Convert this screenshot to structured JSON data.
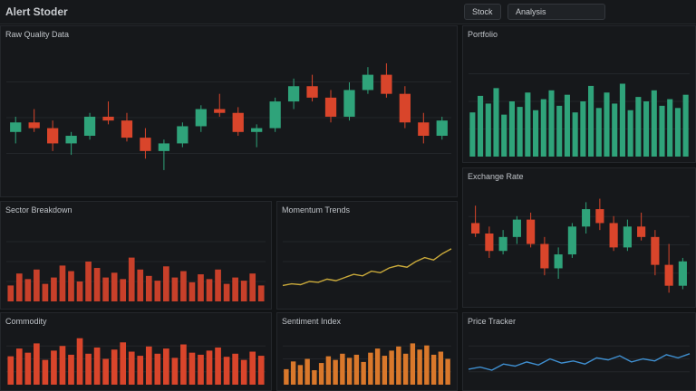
{
  "header": {
    "title": "Alert Stoder",
    "buttons": [
      "Stock",
      "Analysis"
    ]
  },
  "chart_data": [
    {
      "type": "candlestick",
      "title": "Raw Quality Data",
      "ylim": [
        20,
        95
      ],
      "up_color": "#2fa37a",
      "down_color": "#d9452b",
      "candles": [
        [
          50,
          58,
          44,
          55
        ],
        [
          55,
          62,
          50,
          52
        ],
        [
          52,
          56,
          40,
          44
        ],
        [
          44,
          50,
          38,
          48
        ],
        [
          48,
          60,
          46,
          58
        ],
        [
          58,
          66,
          54,
          56
        ],
        [
          56,
          60,
          45,
          47
        ],
        [
          47,
          52,
          36,
          40
        ],
        [
          40,
          46,
          30,
          44
        ],
        [
          44,
          55,
          42,
          53
        ],
        [
          53,
          64,
          50,
          62
        ],
        [
          62,
          70,
          58,
          60
        ],
        [
          60,
          63,
          48,
          50
        ],
        [
          50,
          54,
          42,
          52
        ],
        [
          52,
          68,
          50,
          66
        ],
        [
          66,
          78,
          62,
          74
        ],
        [
          74,
          80,
          66,
          68
        ],
        [
          68,
          72,
          55,
          58
        ],
        [
          58,
          76,
          56,
          72
        ],
        [
          72,
          84,
          70,
          80
        ],
        [
          80,
          86,
          68,
          70
        ],
        [
          70,
          74,
          52,
          55
        ],
        [
          55,
          60,
          44,
          48
        ],
        [
          48,
          58,
          46,
          56
        ]
      ]
    },
    {
      "type": "bar",
      "title": "Sector Breakdown",
      "ylim": [
        0,
        100
      ],
      "color": "#c8402a",
      "values": [
        20,
        35,
        28,
        40,
        22,
        30,
        45,
        38,
        25,
        50,
        42,
        30,
        36,
        28,
        55,
        40,
        32,
        26,
        44,
        30,
        38,
        24,
        34,
        28,
        40,
        22,
        30,
        26,
        35,
        20
      ]
    },
    {
      "type": "bar",
      "title": "Commodity",
      "ylim": [
        0,
        100
      ],
      "color": "#d9452b",
      "values": [
        55,
        70,
        62,
        80,
        48,
        66,
        75,
        58,
        90,
        60,
        72,
        50,
        68,
        82,
        64,
        56,
        74,
        60,
        70,
        52,
        78,
        62,
        58,
        66,
        72,
        54,
        60,
        48,
        64,
        56
      ]
    },
    {
      "type": "line",
      "title": "Momentum Trends",
      "ylim": [
        0,
        100
      ],
      "color": "#c9a93a",
      "values": [
        20,
        22,
        21,
        25,
        24,
        28,
        26,
        30,
        34,
        32,
        38,
        36,
        42,
        45,
        43,
        50,
        55,
        52,
        60,
        66
      ]
    },
    {
      "type": "bar",
      "title": "Sentiment Index",
      "ylim": [
        0,
        100
      ],
      "color": "#d9782b",
      "values": [
        30,
        45,
        38,
        50,
        28,
        42,
        55,
        48,
        60,
        52,
        58,
        44,
        62,
        70,
        56,
        66,
        74,
        60,
        80,
        68,
        76,
        58,
        64,
        50
      ]
    },
    {
      "type": "bar",
      "title": "Portfolio",
      "ylim": [
        0,
        100
      ],
      "color": "#2fa37a",
      "values": [
        40,
        55,
        48,
        62,
        38,
        50,
        45,
        58,
        42,
        52,
        60,
        46,
        56,
        40,
        50,
        64,
        44,
        58,
        48,
        66,
        42,
        54,
        50,
        60,
        46,
        52,
        44,
        56
      ]
    },
    {
      "type": "candlestick",
      "title": "Exchange Rate",
      "ylim": [
        15,
        80
      ],
      "up_color": "#2fa37a",
      "down_color": "#d9452b",
      "candles": [
        [
          60,
          70,
          52,
          54
        ],
        [
          54,
          58,
          40,
          44
        ],
        [
          44,
          56,
          42,
          52
        ],
        [
          52,
          64,
          48,
          62
        ],
        [
          62,
          66,
          46,
          48
        ],
        [
          48,
          52,
          30,
          34
        ],
        [
          34,
          46,
          28,
          42
        ],
        [
          42,
          60,
          40,
          58
        ],
        [
          58,
          72,
          54,
          68
        ],
        [
          68,
          74,
          56,
          60
        ],
        [
          60,
          64,
          44,
          46
        ],
        [
          46,
          62,
          44,
          58
        ],
        [
          58,
          66,
          50,
          52
        ],
        [
          52,
          56,
          30,
          36
        ],
        [
          36,
          48,
          20,
          24
        ],
        [
          24,
          40,
          22,
          38
        ]
      ]
    },
    {
      "type": "line",
      "title": "Price Tracker",
      "ylim": [
        0,
        100
      ],
      "color": "#3f8fd0",
      "values": [
        30,
        34,
        28,
        40,
        36,
        44,
        38,
        50,
        42,
        46,
        40,
        52,
        48,
        56,
        44,
        50,
        46,
        58,
        52,
        60
      ]
    }
  ]
}
